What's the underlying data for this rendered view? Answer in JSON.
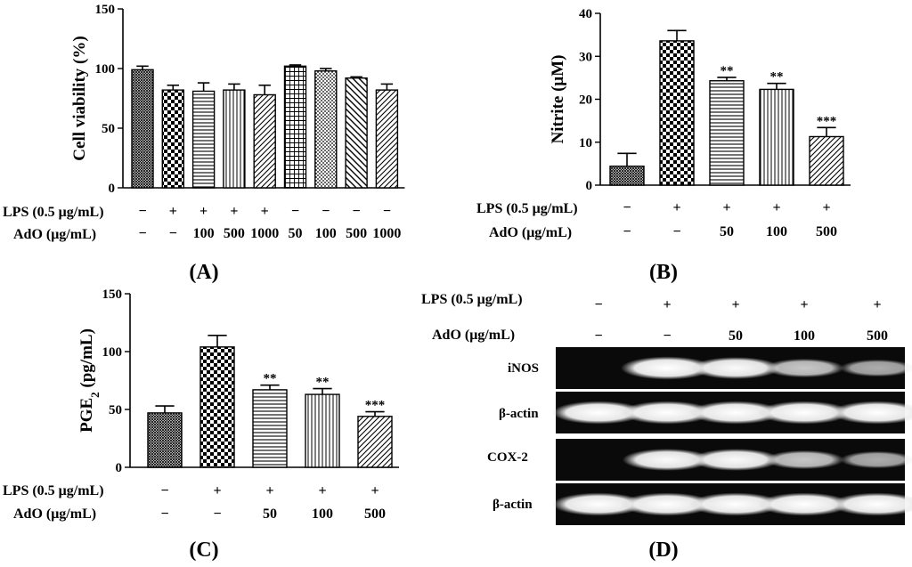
{
  "panel_labels": [
    "(A)",
    "(B)",
    "(C)",
    "(D)"
  ],
  "row_labels": {
    "lps": "LPS (0.5 μg/mL)",
    "ado": "AdO (μg/mL)"
  },
  "gel_labels": [
    "iNOS",
    "β-actin",
    "COX-2",
    "β-actin"
  ],
  "colors": {
    "axis": "#000000",
    "gel_background": "#0a0a0a",
    "band": "#ffffff"
  },
  "chart_data": [
    {
      "id": "A",
      "type": "bar",
      "title": "",
      "xlabel": "",
      "ylabel": "Cell viability (%)",
      "ylim": [
        0,
        150
      ],
      "yticks": [
        0,
        50,
        100,
        150
      ],
      "values": [
        99,
        82,
        81,
        82,
        78,
        102,
        98,
        92,
        82
      ],
      "errors": [
        3,
        4,
        7,
        5,
        8,
        1,
        2,
        1,
        5
      ],
      "significance": [
        "",
        "",
        "",
        "",
        "",
        "",
        "",
        "",
        ""
      ],
      "patterns": [
        "fine",
        "checker",
        "hlines",
        "vlines",
        "diag",
        "grid",
        "dots",
        "back",
        "diag"
      ],
      "lps": [
        "−",
        "+",
        "+",
        "+",
        "+",
        "−",
        "−",
        "−",
        "−"
      ],
      "ado": [
        "−",
        "−",
        "100",
        "500",
        "1000",
        "50",
        "100",
        "500",
        "1000"
      ]
    },
    {
      "id": "B",
      "type": "bar",
      "title": "",
      "xlabel": "",
      "ylabel": "Nitrite (μM)",
      "ylim": [
        0,
        40
      ],
      "yticks": [
        0,
        10,
        20,
        30,
        40
      ],
      "values": [
        4.4,
        33.6,
        24.3,
        22.3,
        11.3
      ],
      "errors": [
        3.0,
        2.4,
        0.8,
        1.4,
        2.1
      ],
      "significance": [
        "",
        "",
        "**",
        "**",
        "***"
      ],
      "patterns": [
        "fine",
        "checker",
        "hlines",
        "vlines",
        "diag"
      ],
      "lps": [
        "−",
        "+",
        "+",
        "+",
        "+"
      ],
      "ado": [
        "−",
        "−",
        "50",
        "100",
        "500"
      ]
    },
    {
      "id": "C",
      "type": "bar",
      "title": "",
      "xlabel": "",
      "ylabel": "PGE2 (pg/mL)",
      "ylim": [
        0,
        150
      ],
      "yticks": [
        0,
        50,
        100,
        150
      ],
      "values": [
        47,
        104,
        67,
        63,
        44
      ],
      "errors": [
        6,
        10,
        4,
        5,
        4
      ],
      "significance": [
        "",
        "",
        "**",
        "**",
        "***"
      ],
      "patterns": [
        "fine",
        "checker",
        "hlines",
        "vlines",
        "diag"
      ],
      "lps": [
        "−",
        "+",
        "+",
        "+",
        "+"
      ],
      "ado": [
        "−",
        "−",
        "50",
        "100",
        "500"
      ]
    }
  ],
  "gel": {
    "lps": [
      "−",
      "+",
      "+",
      "+",
      "+"
    ],
    "ado": [
      "−",
      "−",
      "50",
      "100",
      "500"
    ],
    "bands": [
      [
        0.0,
        1.0,
        0.9,
        0.6,
        0.45
      ],
      [
        1.0,
        1.0,
        1.0,
        1.0,
        1.0
      ],
      [
        0.0,
        0.9,
        0.9,
        0.6,
        0.45
      ],
      [
        1.0,
        1.0,
        1.0,
        1.0,
        1.0
      ]
    ]
  }
}
